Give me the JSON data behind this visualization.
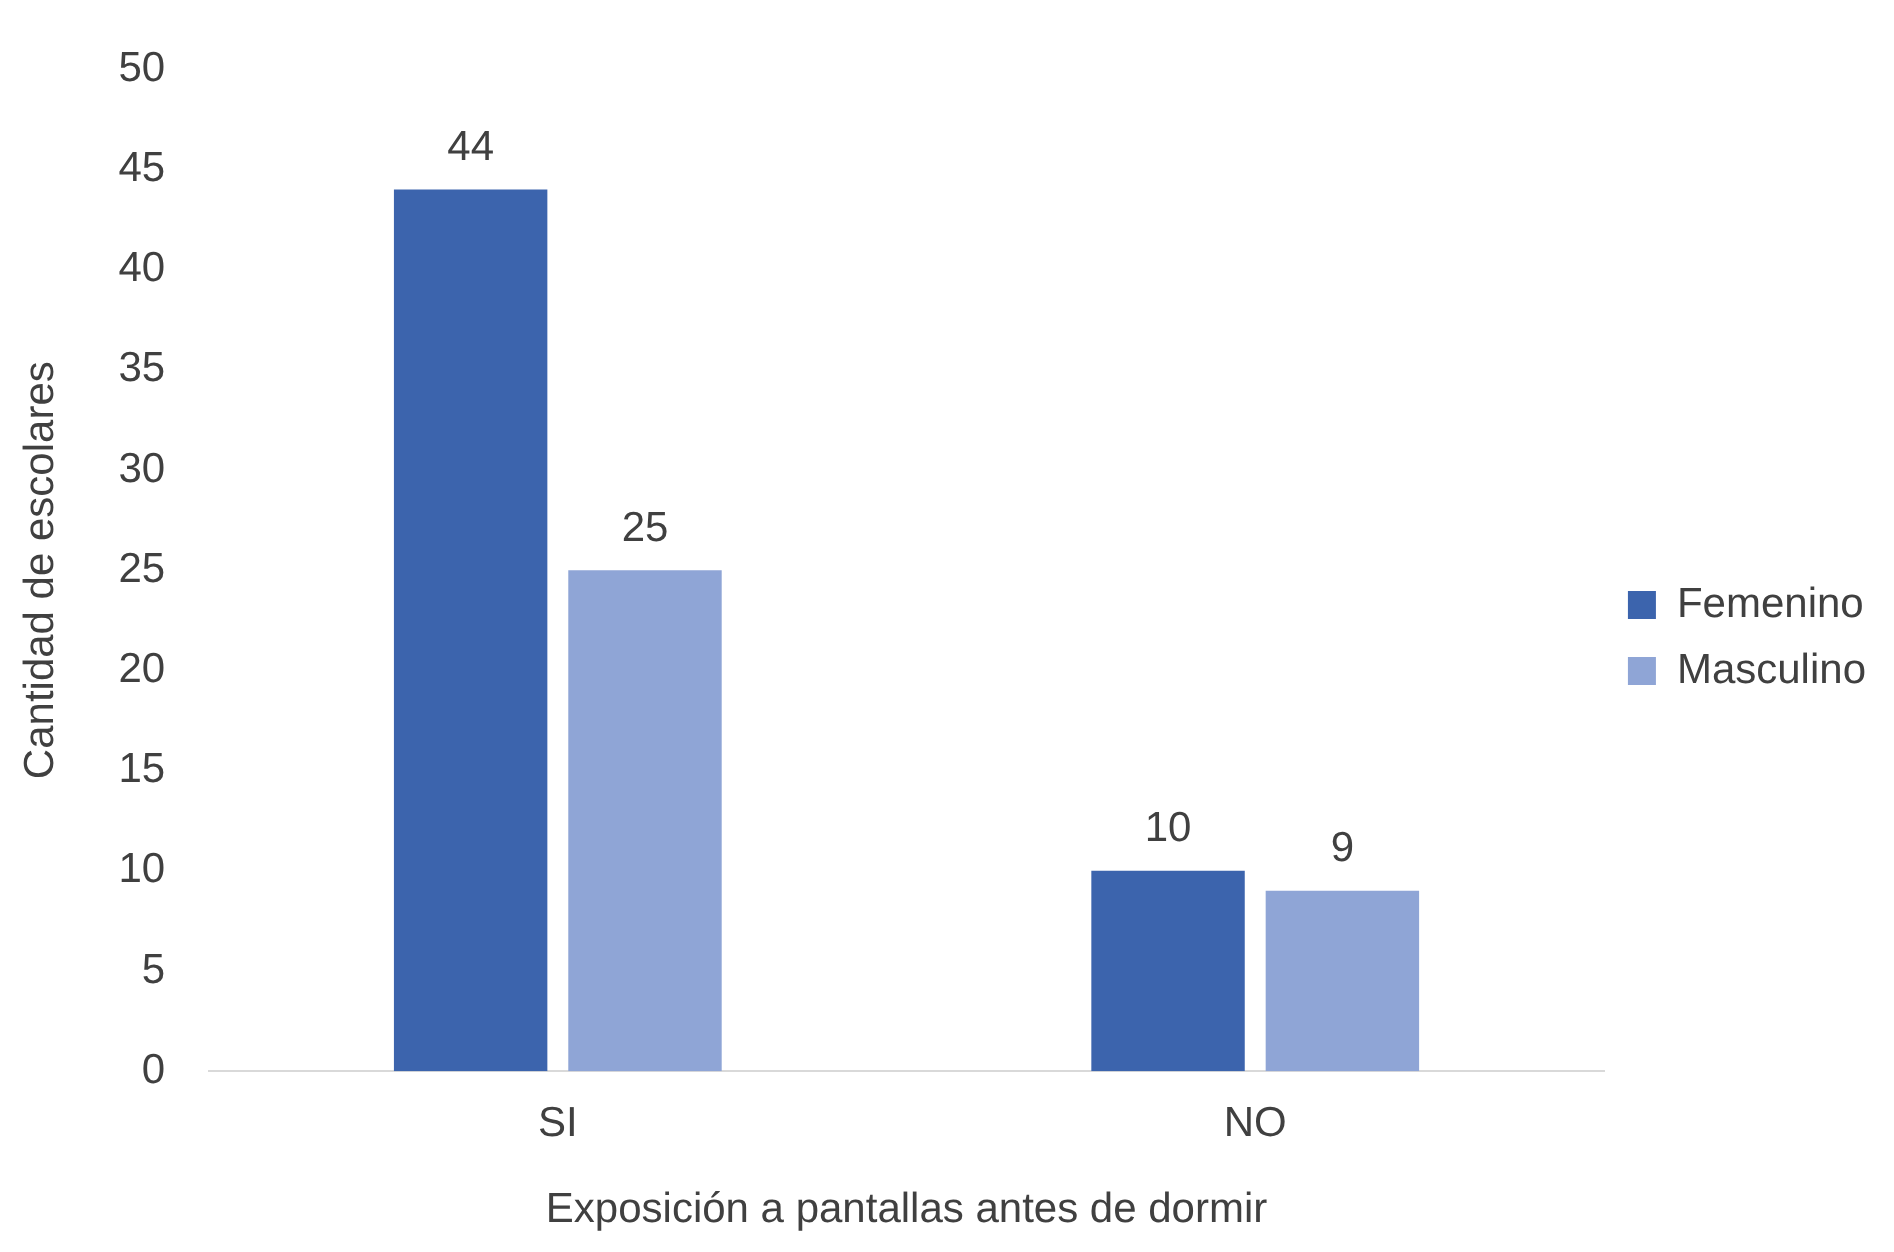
{
  "chart_data": {
    "type": "bar",
    "xlabel": "Exposición a pantallas antes de dormir",
    "ylabel": "Cantidad de escolares",
    "categories": [
      "SI",
      "NO"
    ],
    "series": [
      {
        "name": "Femenino",
        "color": "#3c64ad",
        "values": [
          44,
          10
        ]
      },
      {
        "name": "Masculino",
        "color": "#8fa5d6",
        "values": [
          25,
          9
        ]
      }
    ],
    "ylim": [
      0,
      50
    ],
    "yticks": [
      0,
      5,
      10,
      15,
      20,
      25,
      30,
      35,
      40,
      45,
      50
    ],
    "grid": false,
    "legend": "right",
    "data_labels": true
  }
}
